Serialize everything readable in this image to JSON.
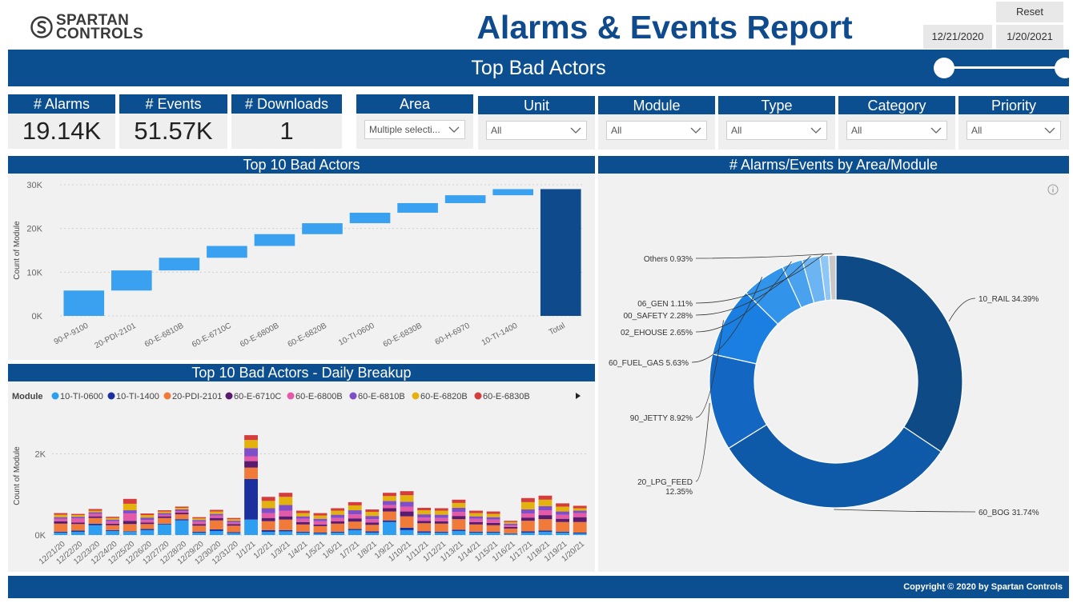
{
  "brand": {
    "line1": "SPARTAN",
    "line2": "CONTROLS"
  },
  "title": "Alarms & Events Report",
  "reset_label": "Reset",
  "date_range": {
    "start": "12/21/2020",
    "end": "1/20/2021"
  },
  "subtitle": "Top Bad Actors",
  "kpis": [
    {
      "label": "# Alarms",
      "value": "19.14K"
    },
    {
      "label": "# Events",
      "value": "51.57K"
    },
    {
      "label": "# Downloads",
      "value": "1"
    }
  ],
  "filters": [
    {
      "label": "Area",
      "value": "Multiple selecti..."
    },
    {
      "label": "Unit",
      "value": "All"
    },
    {
      "label": "Module",
      "value": "All"
    },
    {
      "label": "Type",
      "value": "All"
    },
    {
      "label": "Category",
      "value": "All"
    },
    {
      "label": "Priority",
      "value": "All"
    }
  ],
  "colors": {
    "brand_blue": "#0b4f91",
    "title_blue": "#0f4a8c",
    "waterfall_bar": "#3aa0f0",
    "total_bar": "#0f4a8c"
  },
  "panels": {
    "waterfall_title": "Top 10 Bad Actors",
    "daily_title": "Top 10 Bad Actors - Daily Breakup",
    "donut_title": "# Alarms/Events by Area/Module"
  },
  "footer": "Copyright © 2020 by Spartan Controls",
  "chart_data": [
    {
      "type": "bar",
      "subtype": "waterfall",
      "title": "Top 10 Bad Actors",
      "ylabel": "Count of Module",
      "categories": [
        "90-P-9100",
        "20-PDI-2101",
        "60-E-6810B",
        "60-E-6710C",
        "60-E-6800B",
        "60-E-6820B",
        "10-TI-0600",
        "60-E-6830B",
        "60-H-6970",
        "10-TI-1400",
        "Total"
      ],
      "values": [
        5800,
        4600,
        2900,
        2700,
        2700,
        2500,
        2400,
        2200,
        1800,
        1400,
        29000
      ],
      "ylim": [
        0,
        30000
      ],
      "yticks": [
        "0K",
        "10K",
        "20K",
        "30K"
      ],
      "grid": true
    },
    {
      "type": "bar",
      "subtype": "stacked",
      "title": "Top 10 Bad Actors - Daily Breakup",
      "ylabel": "Count of Module",
      "legend_title": "Module",
      "legend_position": "top",
      "categories": [
        "12/21/20",
        "12/22/20",
        "12/23/20",
        "12/24/20",
        "12/25/20",
        "12/26/20",
        "12/27/20",
        "12/28/20",
        "12/29/20",
        "12/30/20",
        "12/31/20",
        "1/1/21",
        "1/2/21",
        "1/3/21",
        "1/4/21",
        "1/5/21",
        "1/6/21",
        "1/7/21",
        "1/8/21",
        "1/9/21",
        "1/10/21",
        "1/11/21",
        "1/12/21",
        "1/13/21",
        "1/14/21",
        "1/15/21",
        "1/16/21",
        "1/17/21",
        "1/18/21",
        "1/19/21",
        "1/20/21"
      ],
      "ylim": [
        0,
        2600
      ],
      "yticks": [
        "0K",
        "2K"
      ],
      "series": [
        {
          "name": "10-TI-0600",
          "color": "#2e9ff0",
          "values": [
            60,
            80,
            240,
            100,
            80,
            120,
            260,
            360,
            60,
            100,
            50,
            380,
            80,
            90,
            60,
            40,
            60,
            120,
            60,
            320,
            120,
            60,
            60,
            100,
            60,
            60,
            30,
            60,
            80,
            60,
            40
          ]
        },
        {
          "name": "10-TI-1400",
          "color": "#1b2f9e",
          "values": [
            20,
            30,
            40,
            20,
            10,
            30,
            20,
            30,
            20,
            40,
            20,
            1000,
            40,
            30,
            20,
            20,
            20,
            30,
            30,
            40,
            60,
            30,
            20,
            30,
            20,
            20,
            10,
            30,
            30,
            20,
            20
          ]
        },
        {
          "name": "20-PDI-2101",
          "color": "#f07a3a",
          "values": [
            200,
            160,
            140,
            120,
            180,
            120,
            140,
            120,
            150,
            220,
            160,
            280,
            220,
            260,
            180,
            160,
            200,
            180,
            160,
            220,
            280,
            200,
            200,
            260,
            180,
            160,
            120,
            260,
            280,
            240,
            260
          ]
        },
        {
          "name": "60-E-6710C",
          "color": "#5a1a6e",
          "values": [
            60,
            40,
            40,
            40,
            80,
            40,
            40,
            40,
            40,
            60,
            40,
            160,
            80,
            80,
            60,
            40,
            60,
            80,
            60,
            80,
            120,
            60,
            60,
            80,
            60,
            60,
            40,
            80,
            100,
            80,
            120
          ]
        },
        {
          "name": "60-E-6800B",
          "color": "#e45aa9",
          "values": [
            60,
            100,
            60,
            60,
            180,
            60,
            40,
            40,
            60,
            60,
            40,
            120,
            120,
            140,
            80,
            80,
            80,
            100,
            80,
            80,
            120,
            80,
            80,
            100,
            80,
            80,
            40,
            100,
            120,
            100,
            100
          ]
        },
        {
          "name": "60-E-6810B",
          "color": "#7f4fc9",
          "values": [
            40,
            40,
            40,
            40,
            80,
            60,
            40,
            40,
            40,
            40,
            40,
            200,
            120,
            140,
            60,
            60,
            80,
            100,
            80,
            100,
            120,
            80,
            80,
            100,
            60,
            60,
            40,
            100,
            100,
            80,
            60
          ]
        },
        {
          "name": "60-E-6820B",
          "color": "#e3b20e",
          "values": [
            60,
            40,
            40,
            40,
            160,
            60,
            40,
            40,
            40,
            60,
            40,
            200,
            180,
            200,
            80,
            80,
            100,
            120,
            100,
            120,
            160,
            100,
            100,
            120,
            80,
            80,
            40,
            180,
            160,
            120,
            60
          ]
        },
        {
          "name": "60-E-6830B",
          "color": "#d53c3c",
          "values": [
            40,
            30,
            40,
            30,
            120,
            40,
            30,
            30,
            30,
            40,
            30,
            120,
            100,
            100,
            60,
            60,
            60,
            80,
            60,
            80,
            100,
            60,
            60,
            80,
            60,
            60,
            30,
            100,
            100,
            80,
            60
          ]
        }
      ]
    },
    {
      "type": "pie",
      "subtype": "donut",
      "title": "# Alarms/Events by Area/Module",
      "slices": [
        {
          "label": "10_RAIL",
          "percent": 34.39,
          "text": "10_RAIL 34.39%",
          "color": "#0e4a86"
        },
        {
          "label": "60_BOG",
          "percent": 31.74,
          "text": "60_BOG 31.74%",
          "color": "#0f5aa8"
        },
        {
          "label": "20_LPG_FEED",
          "percent": 12.35,
          "text": "20_LPG_FEED",
          "text2": "12.35%",
          "color": "#1366c2"
        },
        {
          "label": "90_JETTY",
          "percent": 8.92,
          "text": "90_JETTY 8.92%",
          "color": "#1a7fe0"
        },
        {
          "label": "60_FUEL_GAS",
          "percent": 5.63,
          "text": "60_FUEL_GAS 5.63%",
          "color": "#3193ea"
        },
        {
          "label": "02_EHOUSE",
          "percent": 2.65,
          "text": "02_EHOUSE 2.65%",
          "color": "#4aa2ef"
        },
        {
          "label": "00_SAFETY",
          "percent": 2.28,
          "text": "00_SAFETY 2.28%",
          "color": "#6cb4f2"
        },
        {
          "label": "06_GEN",
          "percent": 1.11,
          "text": "06_GEN 1.11%",
          "color": "#8ec6f5"
        },
        {
          "label": "Others",
          "percent": 0.93,
          "text": "Others 0.93%",
          "color": "#c8c8c8"
        }
      ]
    }
  ]
}
